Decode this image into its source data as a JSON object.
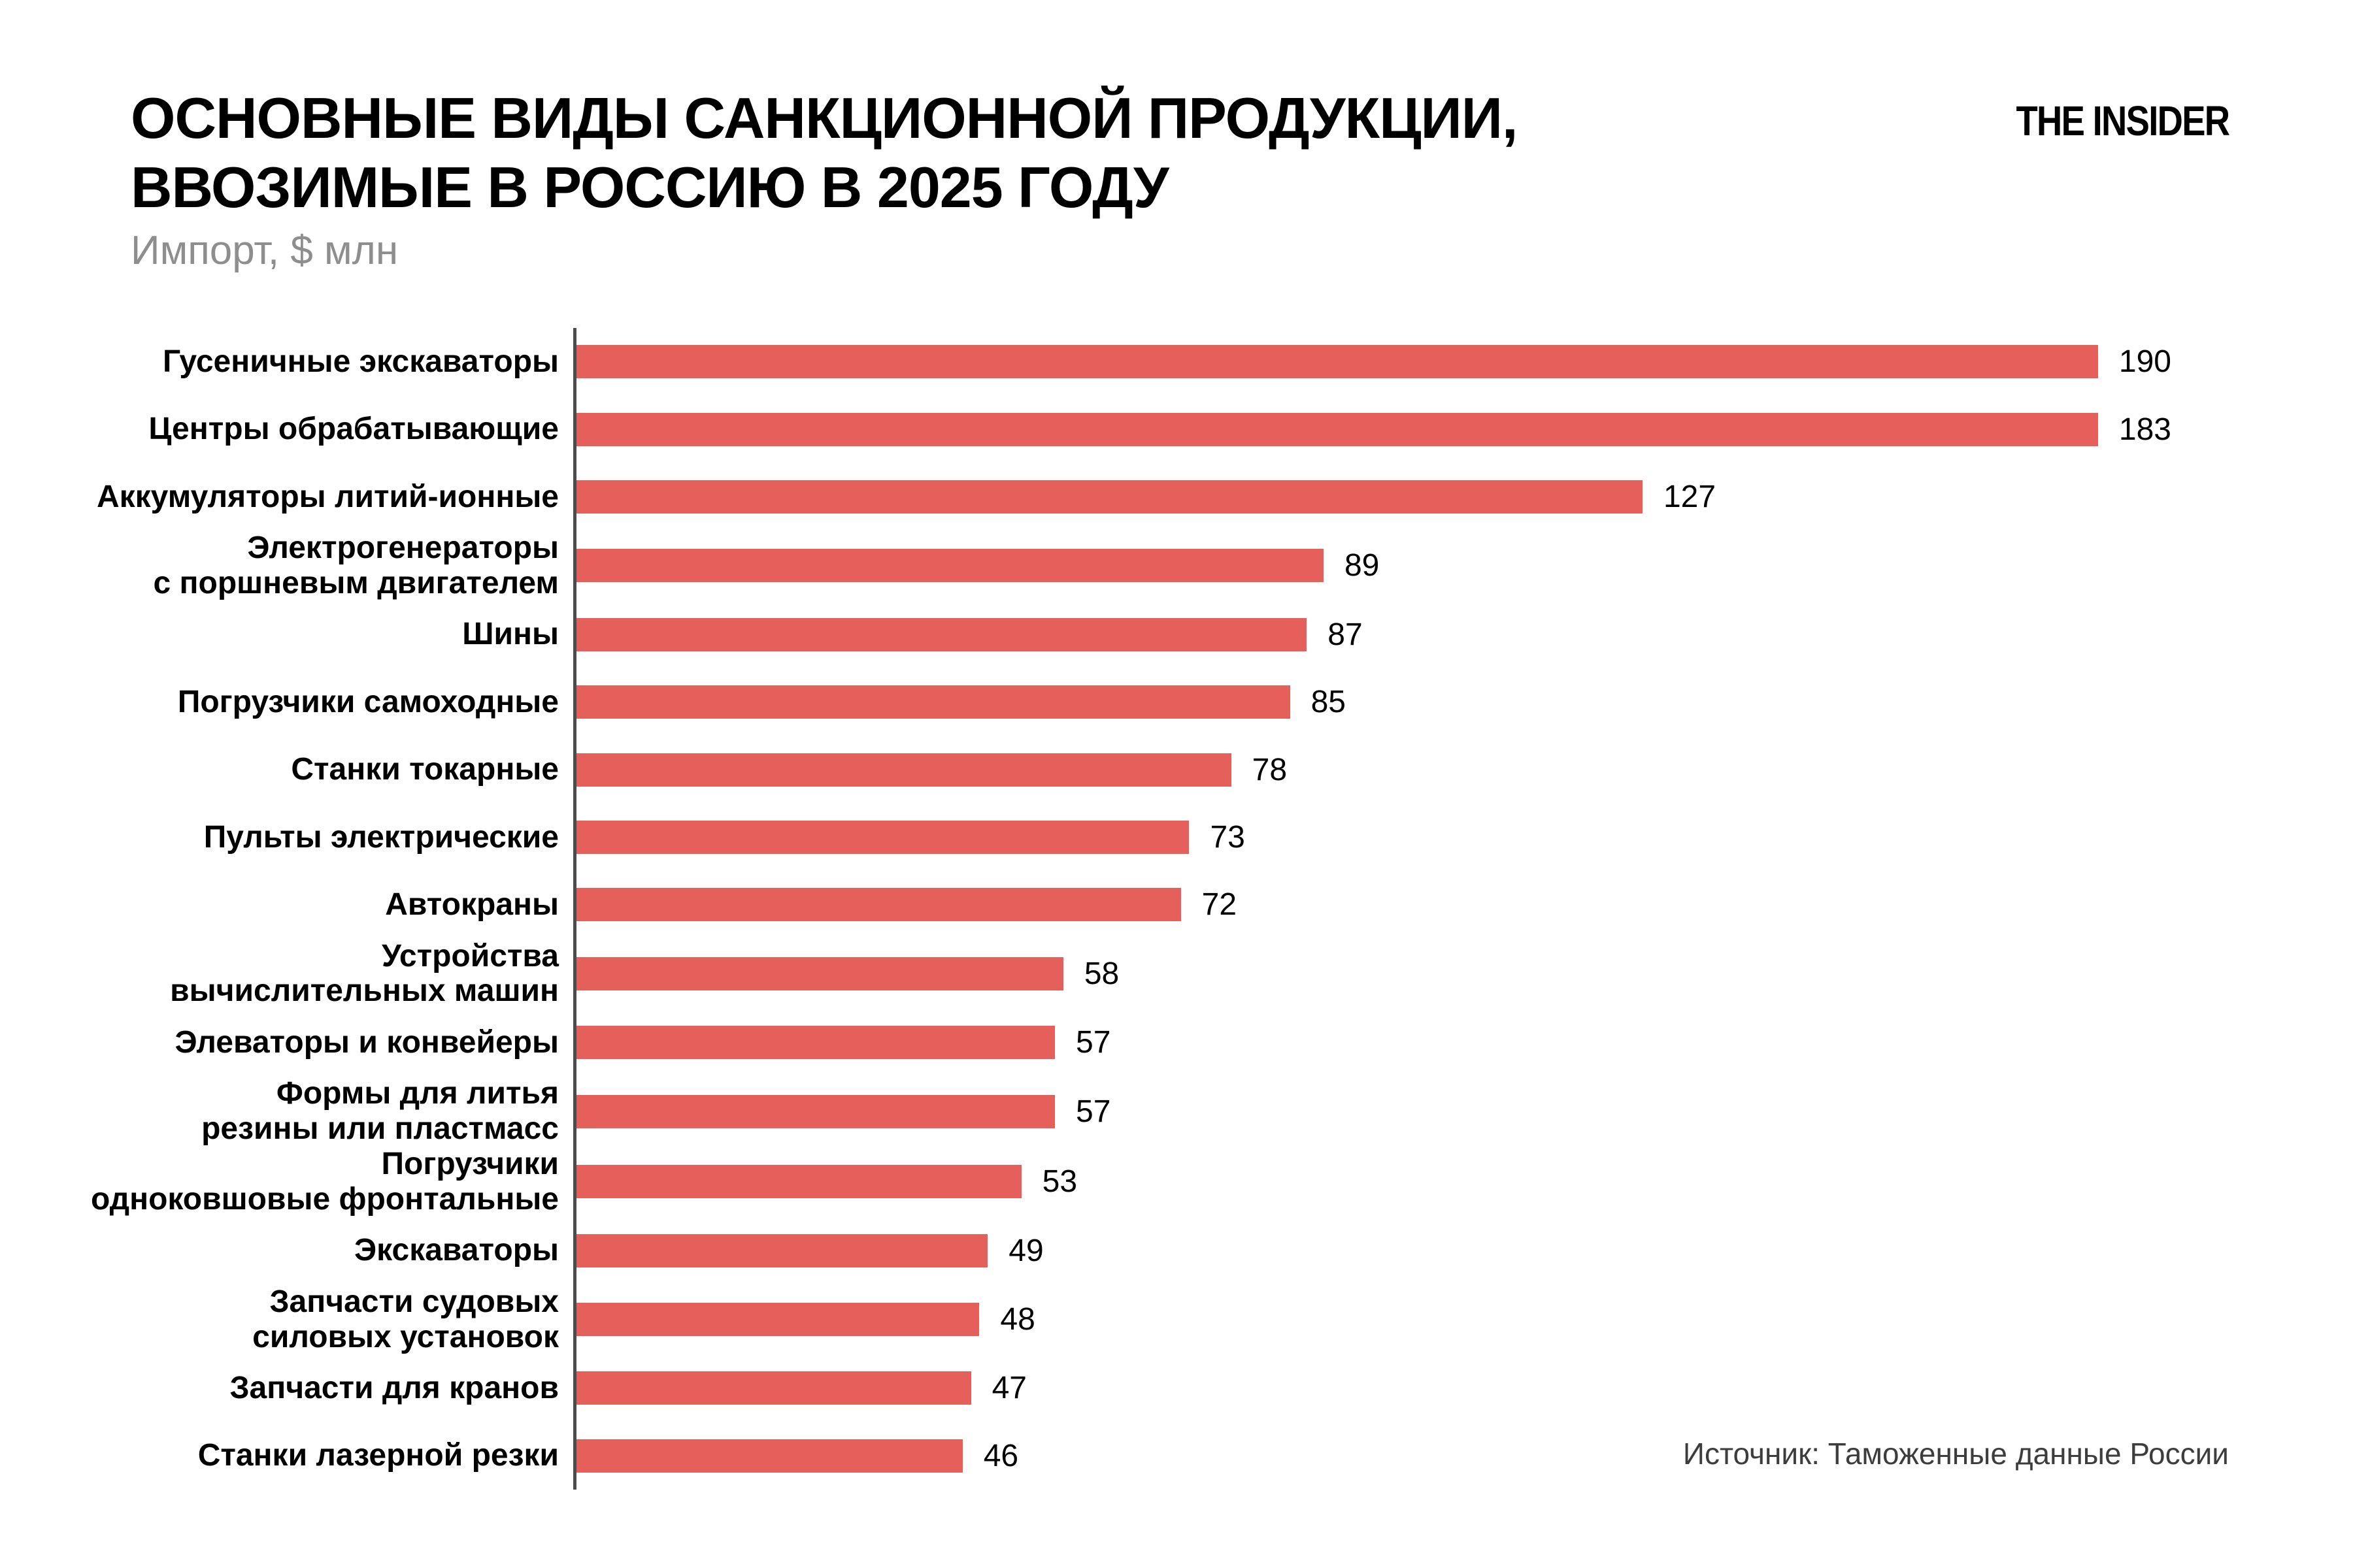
{
  "header": {
    "title": "ОСНОВНЫЕ ВИДЫ САНКЦИОННОЙ ПРОДУКЦИИ,\nВВОЗИМЫЕ В РОССИЮ В 2025 ГОДУ",
    "subtitle": "Импорт, $ млн",
    "logo": "THE INSIDER"
  },
  "footer": {
    "source": "Источник: Таможенные данные России"
  },
  "colors": {
    "bar": "#e5605a",
    "axis": "#4d4d4d",
    "subtitle": "#8e8e8e",
    "source": "#3d3d3d"
  },
  "chart_data": {
    "type": "bar",
    "orientation": "horizontal",
    "title": "ОСНОВНЫЕ ВИДЫ САНКЦИОННОЙ ПРОДУКЦИИ, ВВОЗИМЫЕ В РОССИЮ В 2025 ГОДУ",
    "subtitle": "Импорт, $ млн",
    "unit": "$ млн",
    "grid": false,
    "legend": false,
    "value_labels": "end-of-bar",
    "xlim": [
      0,
      190
    ],
    "value_max": 190,
    "categories": [
      "Гусеничные экскаваторы",
      "Центры обрабатывающие",
      "Аккумуляторы литий-ионные",
      "Электрогенераторы\nс поршневым двигателем",
      "Шины",
      "Погрузчики самоходные",
      "Станки токарные",
      "Пульты электрические",
      "Автокраны",
      "Устройства\nвычислительных машин",
      "Элеваторы и конвейеры",
      "Формы для литья\nрезины или пластмасс",
      "Погрузчики\nодноковшовые фронтальные",
      "Экскаваторы",
      "Запчасти судовых\nсиловых установок",
      "Запчасти для кранов",
      "Станки лазерной резки"
    ],
    "values": [
      190,
      183,
      127,
      89,
      87,
      85,
      78,
      73,
      72,
      58,
      57,
      57,
      53,
      49,
      48,
      47,
      46
    ],
    "source": "Источник: Таможенные данные России"
  }
}
